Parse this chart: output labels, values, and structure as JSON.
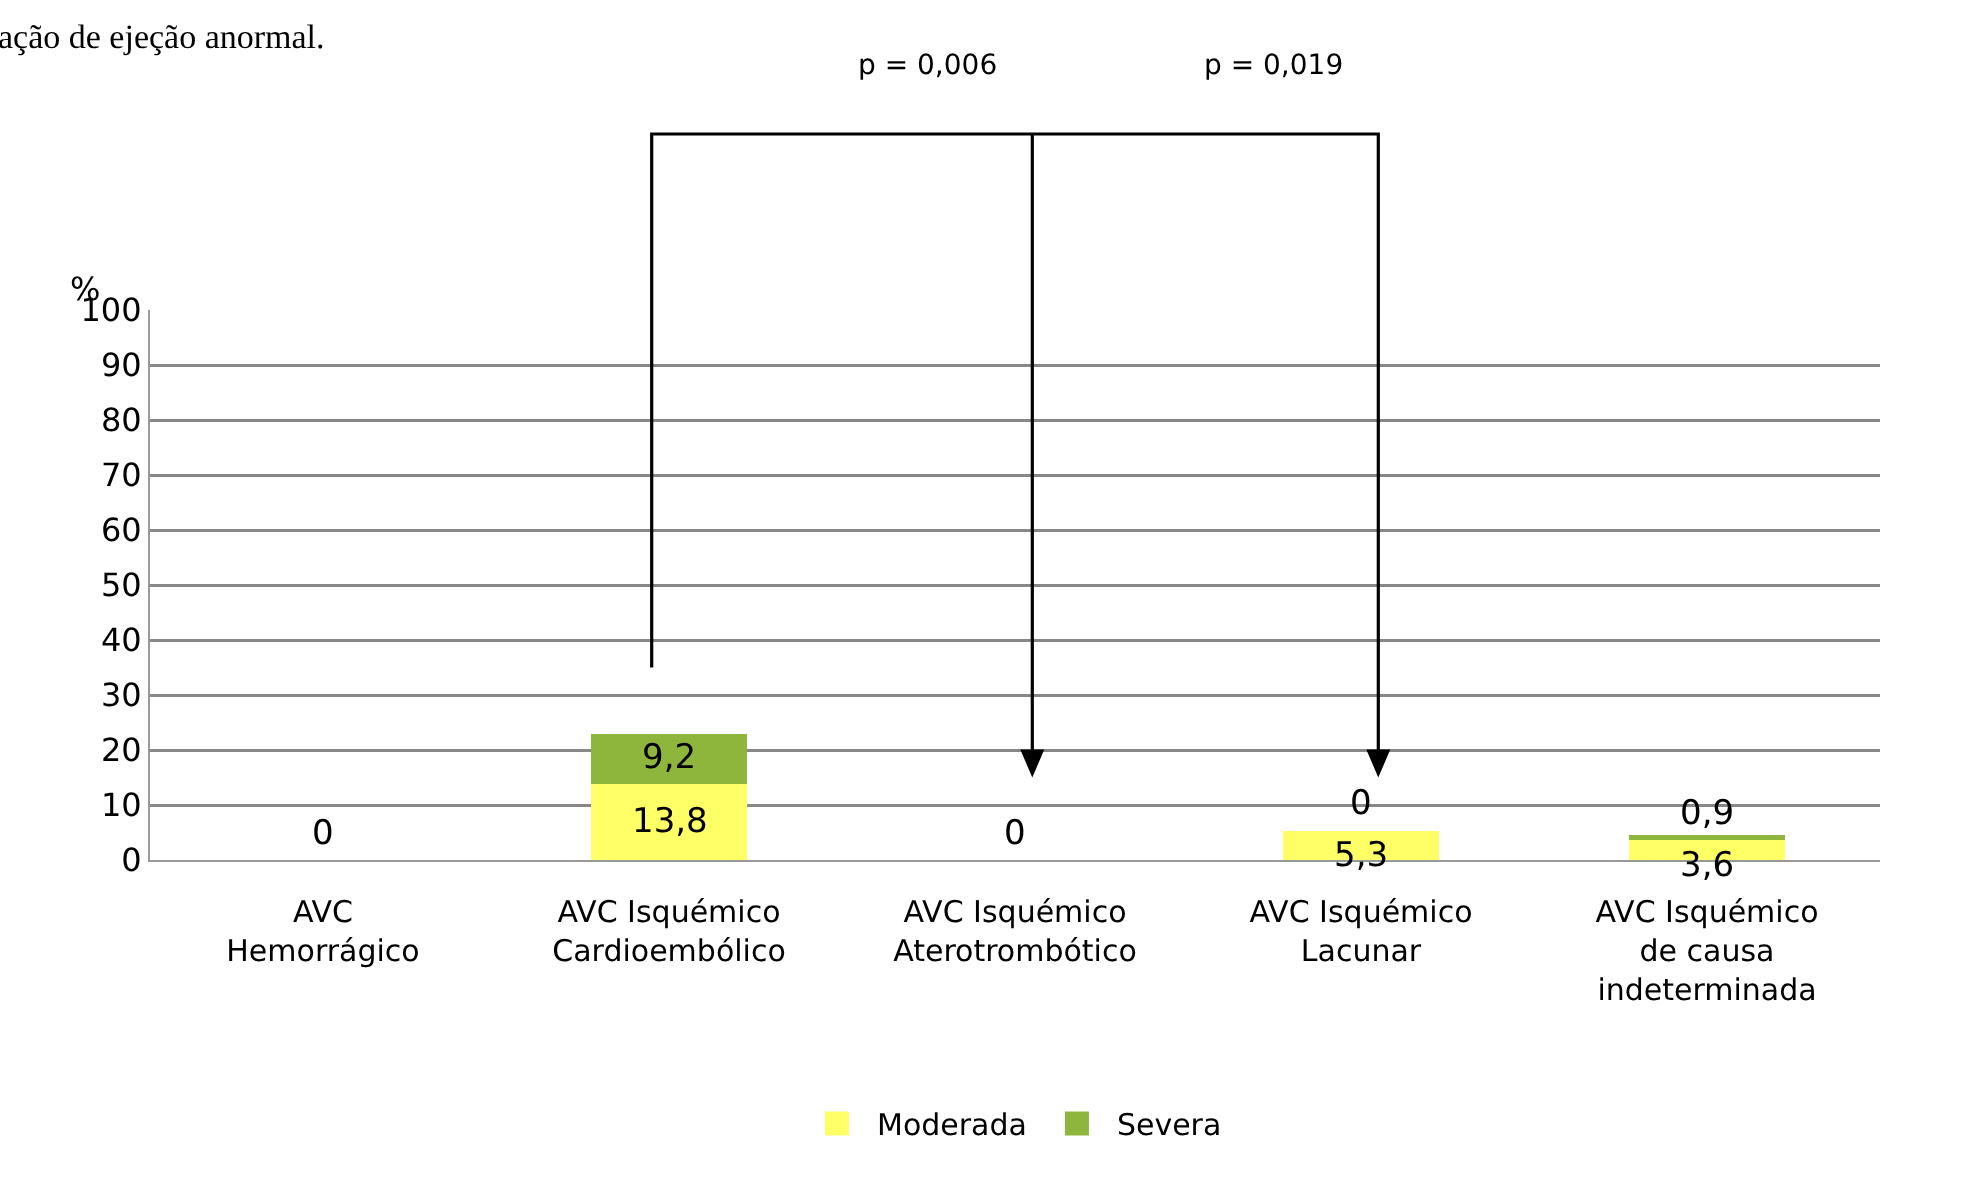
{
  "chart_data": {
    "type": "bar",
    "stacked": true,
    "ylabel": "%",
    "categories": [
      "AVC\nHemorrágico",
      "AVC Isquémico\nCardioembólico",
      "AVC Isquémico\nAterotrombótico",
      "AVC Isquémico\nLacunar",
      "AVC Isquémico\nde causa\nindeterminada"
    ],
    "series": [
      {
        "name": "Moderada",
        "color": "#ffff66",
        "values": [
          0,
          13.8,
          0,
          5.3,
          3.6
        ],
        "value_labels": [
          null,
          "13,8",
          null,
          "5,3",
          "3,6"
        ]
      },
      {
        "name": "Severa",
        "color": "#8fb63c",
        "values": [
          0,
          9.2,
          0,
          0,
          0.9
        ],
        "value_labels": [
          "0",
          "9,2",
          "0",
          "0",
          "0,9"
        ]
      }
    ],
    "ylim": [
      0,
      100
    ],
    "yticks": [
      0,
      10,
      20,
      30,
      40,
      50,
      60,
      70,
      80,
      90,
      100
    ],
    "grid": "y",
    "legend": "bottom",
    "annotations": [
      "ação de ejeção anormal.",
      "p = 0,006",
      "p = 0,019"
    ]
  }
}
